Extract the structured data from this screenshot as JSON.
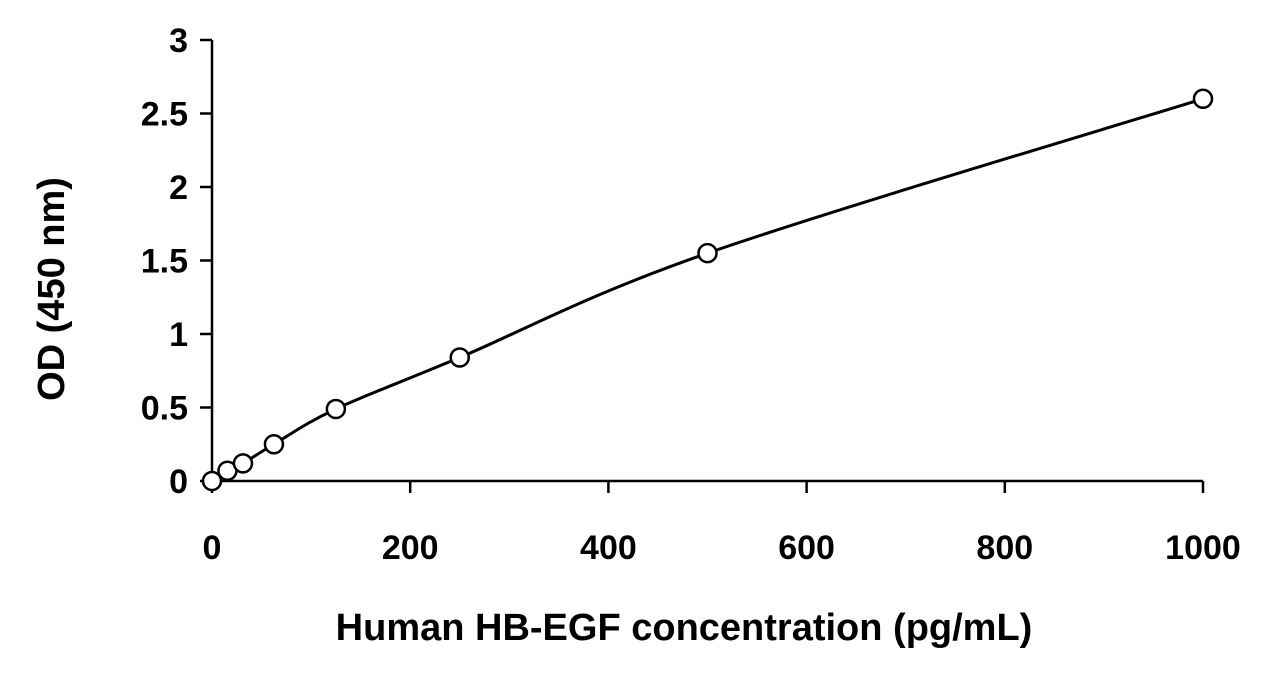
{
  "chart_data": {
    "type": "scatter",
    "title": "",
    "xlabel": "Human HB-EGF concentration (pg/mL)",
    "ylabel": "OD (450 nm)",
    "xlim": [
      0,
      1000
    ],
    "ylim": [
      0,
      3
    ],
    "x_ticks": [
      "0",
      "200",
      "400",
      "600",
      "800",
      "1000"
    ],
    "y_ticks": [
      "0",
      "0.5",
      "1",
      "1.5",
      "2",
      "2.5",
      "3"
    ],
    "grid": false,
    "legend": "none",
    "marker": "open-circle",
    "fit_line": "smooth-curve",
    "colors": {
      "line": "#000000",
      "marker_fill": "#ffffff",
      "background": "#ffffff"
    },
    "series": [
      {
        "x": [
          0,
          15.6,
          31.25,
          62.5,
          125,
          250,
          500,
          1000
        ],
        "y": [
          0.0,
          0.07,
          0.12,
          0.25,
          0.49,
          0.84,
          1.55,
          2.6
        ]
      }
    ]
  }
}
